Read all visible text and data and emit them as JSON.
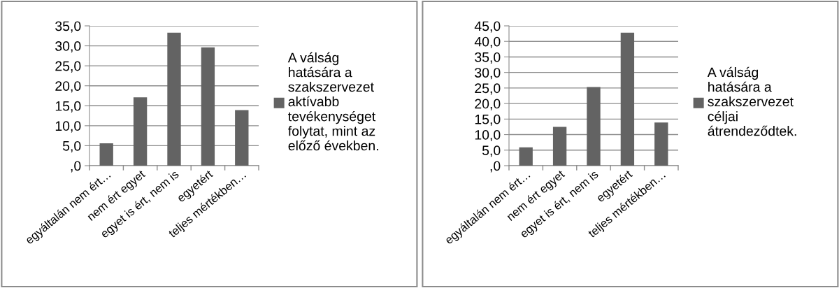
{
  "chart_data": [
    {
      "type": "bar",
      "categories": [
        "egyáltalán nem ért…",
        "nem ért egyet",
        "egyet is ért, nem is",
        "egyetért",
        "teljes mértékben…"
      ],
      "series": [
        {
          "name": "A válság hatására a szakszervezet aktívabb tevékenységet folytat, mint az előző években.",
          "color": "#636363",
          "values": [
            5.6,
            17.1,
            33.3,
            29.6,
            13.9
          ]
        }
      ],
      "ylim": [
        0,
        35
      ],
      "yticks": [
        {
          "value": 0,
          "label": ",0"
        },
        {
          "value": 5,
          "label": "5,0"
        },
        {
          "value": 10,
          "label": "10,0"
        },
        {
          "value": 15,
          "label": "15,0"
        },
        {
          "value": 20,
          "label": "20,0"
        },
        {
          "value": 25,
          "label": "25,0"
        },
        {
          "value": 30,
          "label": "30,0"
        },
        {
          "value": 35,
          "label": "35,0"
        }
      ],
      "grid": "y",
      "legend": "right"
    },
    {
      "type": "bar",
      "categories": [
        "egyáltalán nem ért…",
        "nem ért egyet",
        "egyet is ért, nem is",
        "egyetért",
        "teljes mértékben…"
      ],
      "series": [
        {
          "name": "A válság hatására a szakszervezet céljai átrendeződtek.",
          "color": "#636363",
          "values": [
            5.9,
            12.5,
            25.3,
            42.8,
            13.9
          ]
        }
      ],
      "ylim": [
        0,
        45
      ],
      "yticks": [
        {
          "value": 0,
          "label": ",0"
        },
        {
          "value": 5,
          "label": "5,0"
        },
        {
          "value": 10,
          "label": "10,0"
        },
        {
          "value": 15,
          "label": "15,0"
        },
        {
          "value": 20,
          "label": "20,0"
        },
        {
          "value": 25,
          "label": "25,0"
        },
        {
          "value": 30,
          "label": "30,0"
        },
        {
          "value": 35,
          "label": "35,0"
        },
        {
          "value": 40,
          "label": "40,0"
        },
        {
          "value": 45,
          "label": "45,0"
        }
      ],
      "grid": "y",
      "legend": "right"
    }
  ]
}
